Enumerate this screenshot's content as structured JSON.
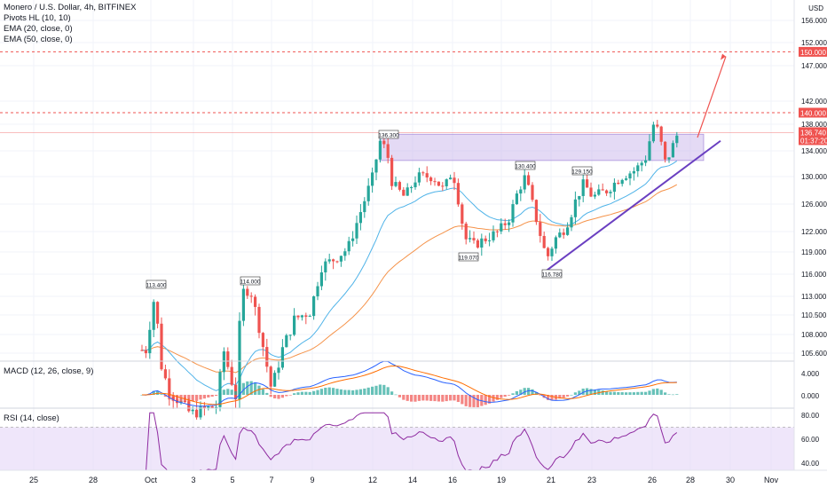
{
  "legend": {
    "title": "Monero / U.S. Dollar, 4h, BITFINEX",
    "indicators": [
      "Pivots HL (10, 10)",
      "EMA (20, close, 0)",
      "EMA (50, close, 0)"
    ]
  },
  "macd_label": "MACD (12, 26, close, 9)",
  "rsi_label": "RSI (14, close)",
  "currency": "USD",
  "colors": {
    "up": "#26a69a",
    "down": "#ef5350",
    "ema20": "#4fb3e8",
    "ema50": "#f5934a",
    "zone": "#c9b6ec",
    "trendline": "#6a3fc1",
    "arrow": "#ef5350",
    "rsi": "#8e2aa0"
  },
  "chart_data": {
    "type": "candlestick",
    "price_axis": {
      "ticks": [
        "156.000",
        "152.000",
        "147.000",
        "142.000",
        "138.000",
        "134.000",
        "130.000",
        "126.000",
        "122.000",
        "119.000",
        "116.000",
        "113.000",
        "110.500",
        "108.000",
        "105.600"
      ]
    },
    "x_axis": {
      "ticks": [
        "25",
        "28",
        "Oct",
        "3",
        "5",
        "7",
        "9",
        "12",
        "14",
        "16",
        "19",
        "21",
        "23",
        "26",
        "28",
        "30",
        "Nov"
      ]
    },
    "levels": [
      {
        "label": "150.000",
        "value": 150.0,
        "style": "dashed"
      },
      {
        "label": "140.000",
        "value": 140.0,
        "style": "dashed"
      }
    ],
    "last_price": {
      "label": "136.740",
      "countdown": "01:37:20"
    },
    "pivot_labels": [
      {
        "text": "113.400"
      },
      {
        "text": "114.000"
      },
      {
        "text": "136.300"
      },
      {
        "text": "119.070"
      },
      {
        "text": "130.400"
      },
      {
        "text": "129.150"
      },
      {
        "text": "116.780"
      }
    ],
    "resistance_zone": {
      "from": 132.5,
      "to": 136.5
    },
    "macd_axis": [
      "4.000",
      "0.000"
    ],
    "rsi_axis": [
      "80.00",
      "60.00",
      "40.00"
    ]
  }
}
